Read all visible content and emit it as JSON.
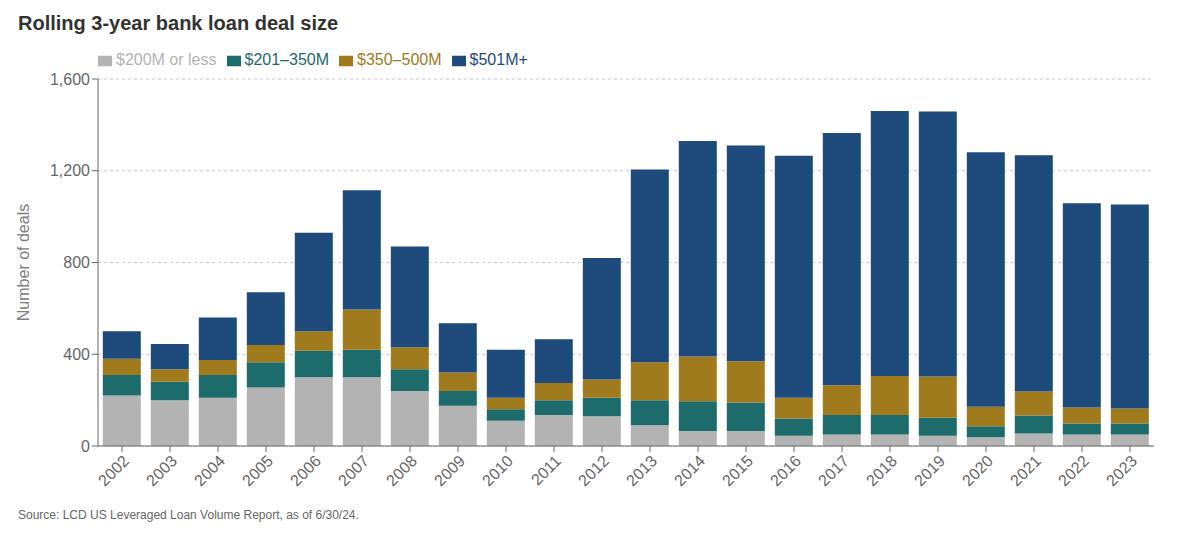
{
  "chart_data": {
    "type": "bar",
    "stacked": true,
    "title": "Rolling 3-year bank loan deal size",
    "ylabel": "Number of deals",
    "annotations": [
      "Source: LCD US Leveraged Loan Volume Report, as of 6/30/24."
    ],
    "categories": [
      "2002",
      "2003",
      "2004",
      "2005",
      "2006",
      "2007",
      "2008",
      "2009",
      "2010",
      "2011",
      "2012",
      "2013",
      "2014",
      "2015",
      "2016",
      "2017",
      "2018",
      "2019",
      "2020",
      "2021",
      "2022",
      "2023"
    ],
    "series": [
      {
        "name": "$200M or less",
        "color": "#b3b3b3",
        "values": [
          220,
          200,
          210,
          255,
          300,
          300,
          240,
          175,
          110,
          135,
          130,
          90,
          65,
          65,
          45,
          50,
          50,
          45,
          38,
          55,
          50,
          50
        ]
      },
      {
        "name": "$201–350M",
        "color": "#1d6b6a",
        "values": [
          90,
          80,
          100,
          110,
          115,
          120,
          95,
          65,
          50,
          65,
          80,
          110,
          130,
          125,
          75,
          85,
          85,
          78,
          48,
          78,
          48,
          48
        ]
      },
      {
        "name": "$350–500M",
        "color": "#a07b1e",
        "values": [
          70,
          55,
          65,
          75,
          85,
          175,
          95,
          80,
          50,
          75,
          80,
          165,
          195,
          180,
          90,
          130,
          170,
          180,
          85,
          105,
          70,
          65
        ]
      },
      {
        "name": "$501M+",
        "color": "#1e4a7c",
        "values": [
          120,
          110,
          185,
          230,
          430,
          520,
          440,
          215,
          210,
          190,
          530,
          840,
          940,
          940,
          1055,
          1100,
          1155,
          1155,
          1110,
          1030,
          890,
          890
        ]
      }
    ],
    "ylim": [
      0,
      1600
    ],
    "yticks": [
      0,
      400,
      800,
      {
        "value": 1200,
        "label": "1,200"
      },
      {
        "value": 1600,
        "label": "1,600"
      }
    ],
    "grid": true,
    "legend": "upper left"
  }
}
